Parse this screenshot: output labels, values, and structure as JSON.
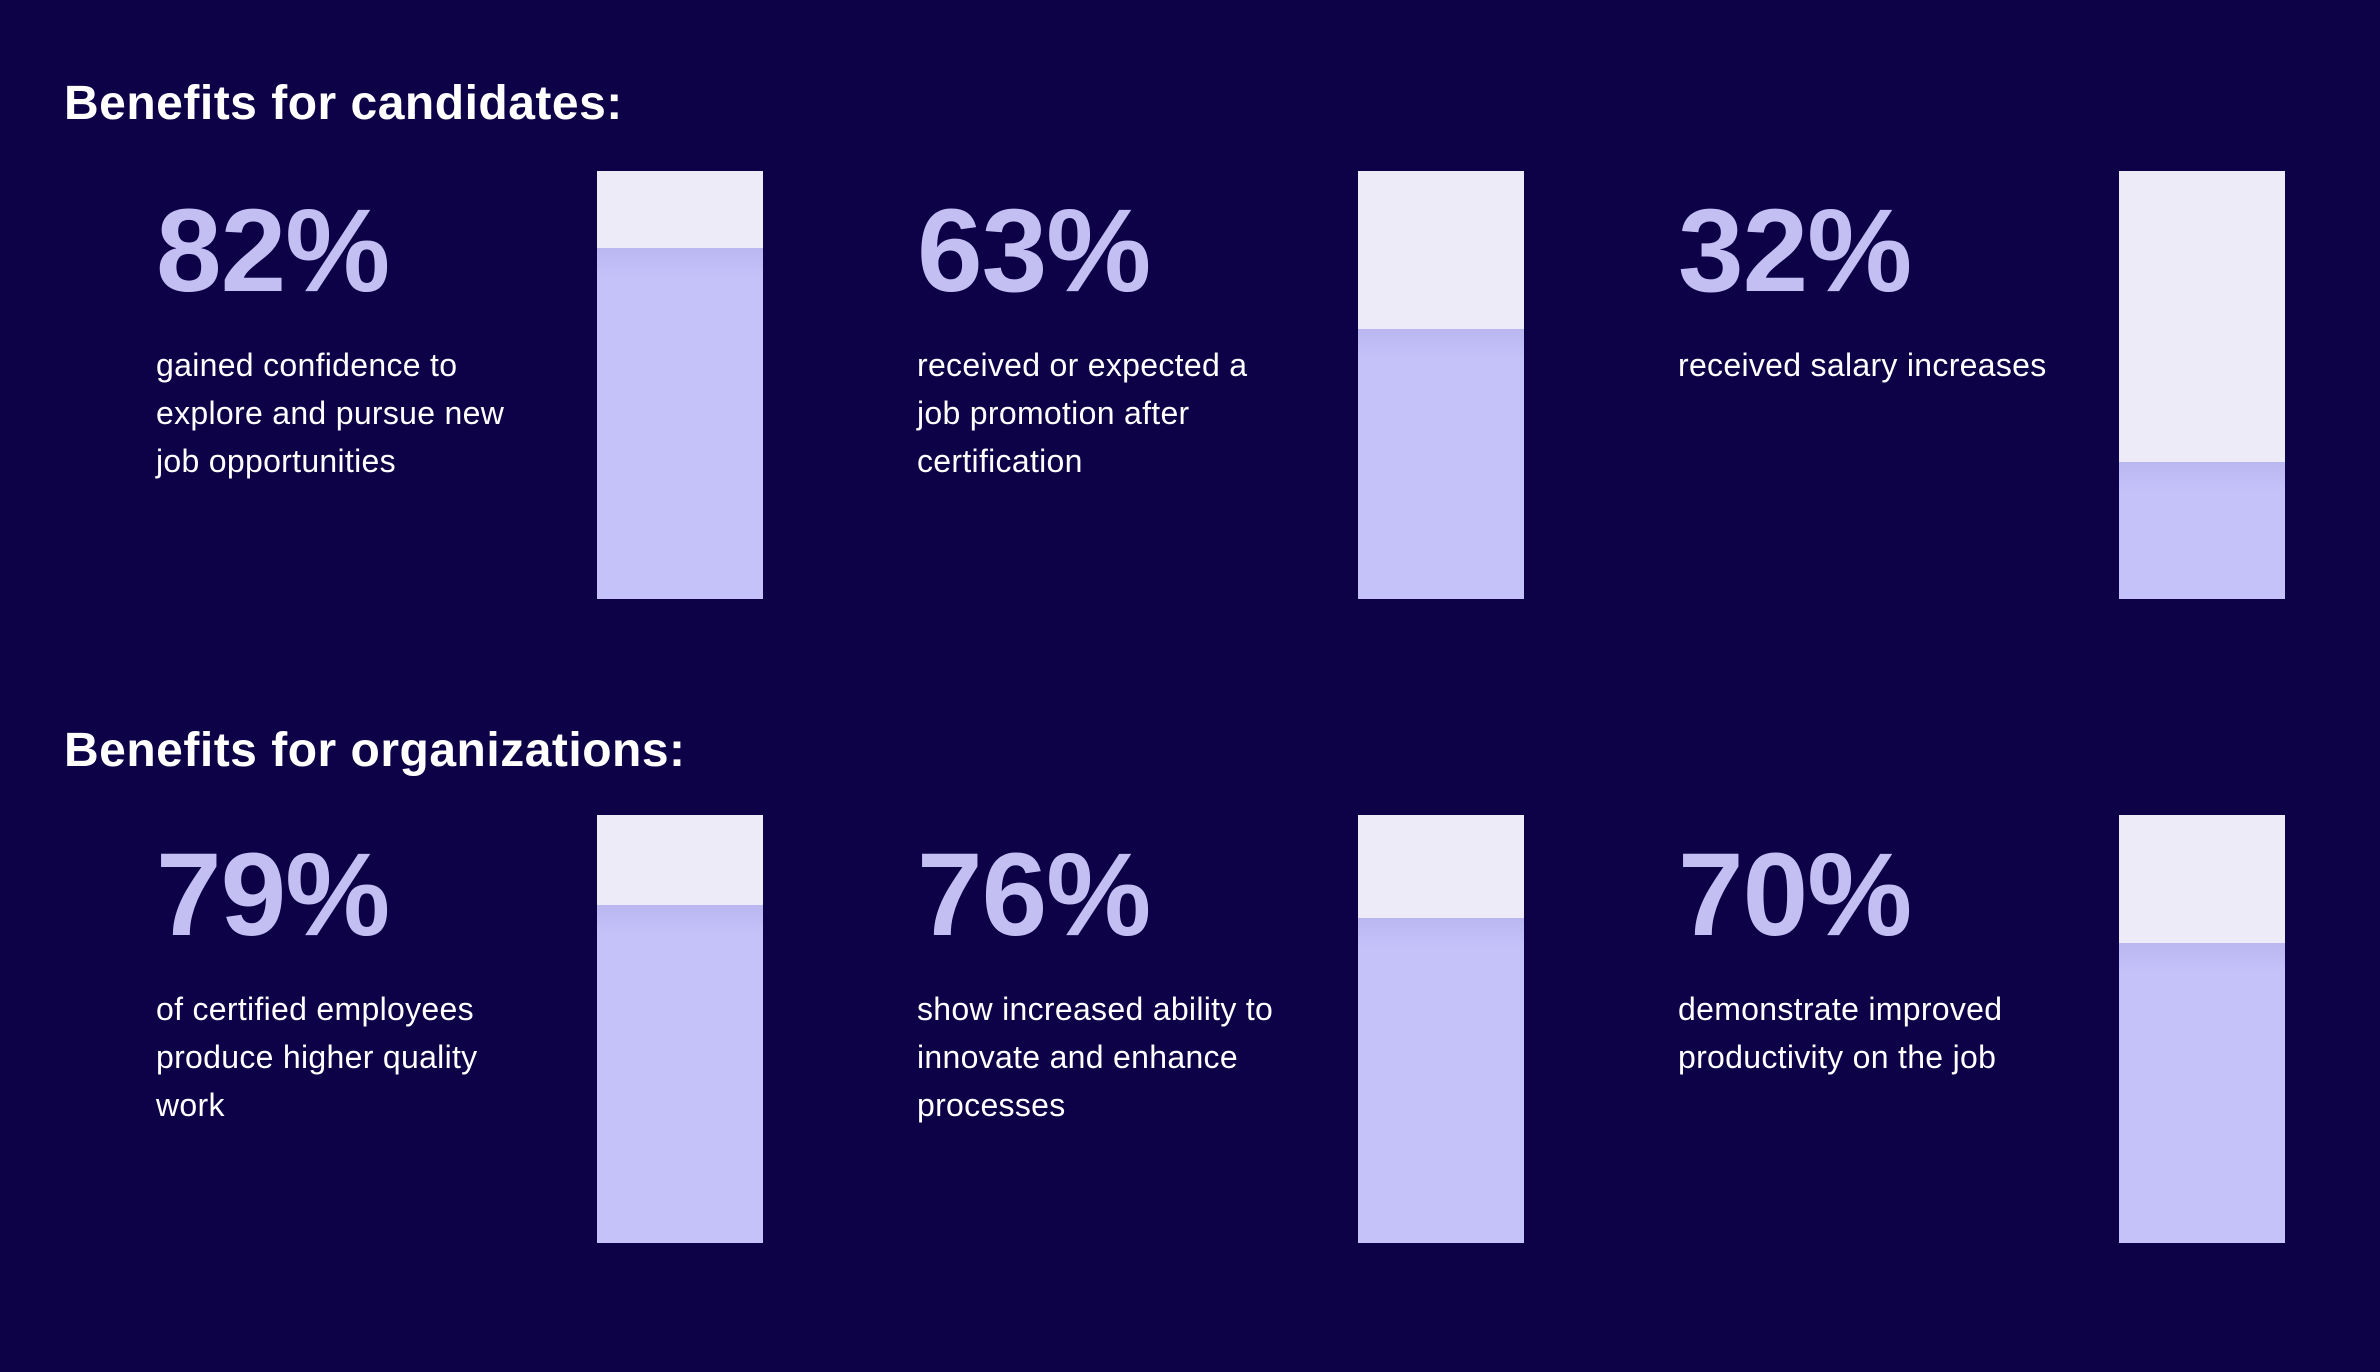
{
  "page": {
    "background_color": "#0d0148",
    "accent_color": "#c3bff2",
    "bar_fill_color": "#c5c1f9",
    "bar_track_color": "#edebf8",
    "text_color": "#ffffff"
  },
  "sections": [
    {
      "heading": "Benefits for candidates:",
      "stats": [
        {
          "value": "82%",
          "percent": 82,
          "description": "gained confidence to\nexplore and pursue new\njob opportunities"
        },
        {
          "value": "63%",
          "percent": 63,
          "description": "received or expected a\njob promotion after\ncertification"
        },
        {
          "value": "32%",
          "percent": 32,
          "description": "received salary increases"
        }
      ]
    },
    {
      "heading": "Benefits for organizations:",
      "stats": [
        {
          "value": "79%",
          "percent": 79,
          "description": "of certified employees\nproduce higher quality\nwork"
        },
        {
          "value": "76%",
          "percent": 76,
          "description": "show increased ability to\ninnovate and enhance\nprocesses"
        },
        {
          "value": "70%",
          "percent": 70,
          "description": "demonstrate improved\nproductivity on the job"
        }
      ]
    }
  ],
  "chart_data": [
    {
      "type": "bar",
      "title": "Benefits for candidates:",
      "categories": [
        "gained confidence to explore and pursue new job opportunities",
        "received or expected a job promotion after certification",
        "received salary increases"
      ],
      "values": [
        82,
        63,
        32
      ],
      "xlabel": "",
      "ylabel": "",
      "ylim": [
        0,
        100
      ],
      "grid": false,
      "legend_position": "none",
      "note": "Each stat rendered as a vertical progress bar filled from the bottom to its percentage of 100."
    },
    {
      "type": "bar",
      "title": "Benefits for organizations:",
      "categories": [
        "of certified employees produce higher quality work",
        "show increased ability to innovate and enhance processes",
        "demonstrate improved productivity on the job"
      ],
      "values": [
        79,
        76,
        70
      ],
      "xlabel": "",
      "ylabel": "",
      "ylim": [
        0,
        100
      ],
      "grid": false,
      "legend_position": "none",
      "note": "Each stat rendered as a vertical progress bar filled from the bottom to its percentage of 100."
    }
  ]
}
